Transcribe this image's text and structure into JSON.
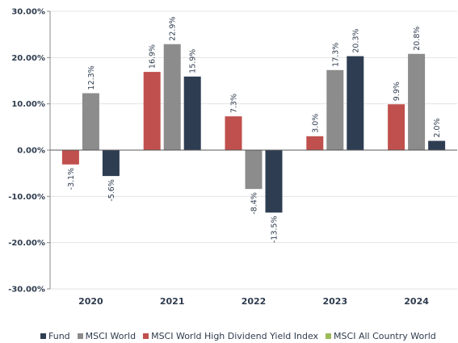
{
  "chart_data": {
    "type": "bar",
    "categories": [
      "2020",
      "2021",
      "2022",
      "2023",
      "2024"
    ],
    "series": [
      {
        "name": "MSCI World High Dividend Yield Index",
        "values": [
          -3.1,
          16.9,
          7.3,
          3.0,
          9.9
        ],
        "labels": [
          "-3.1%",
          "16.9%",
          "7.3%",
          "3.0%",
          "9.9%"
        ],
        "color": "#c0504d"
      },
      {
        "name": "MSCI World",
        "values": [
          12.3,
          22.9,
          -8.4,
          17.3,
          20.8
        ],
        "labels": [
          "12.3%",
          "22.9%",
          "-8.4%",
          "17.3%",
          "20.8%"
        ],
        "color": "#8c8c8c"
      },
      {
        "name": "Fund",
        "values": [
          -5.6,
          15.9,
          -13.5,
          20.3,
          2.0
        ],
        "labels": [
          "-5.6%",
          "15.9%",
          "-13.5%",
          "20.3%",
          "2.0%"
        ],
        "color": "#2e3d52"
      }
    ],
    "ylim": [
      -30,
      30
    ],
    "yticks": [
      30,
      20,
      10,
      0,
      -10,
      -20,
      -30
    ],
    "ytick_labels": [
      "30.00%",
      "20.00%",
      "10.00%",
      "0.00%",
      "-10.00%",
      "-20.00%",
      "-30.00%"
    ],
    "grid": true,
    "legend_position": "bottom",
    "legend": [
      {
        "name": "Fund",
        "color": "#2e3d52"
      },
      {
        "name": "MSCI World",
        "color": "#8c8c8c"
      },
      {
        "name": "MSCI World High Dividend Yield Index",
        "color": "#c0504d"
      },
      {
        "name": "MSCI All Country World",
        "color": "#9bbb59"
      }
    ]
  }
}
